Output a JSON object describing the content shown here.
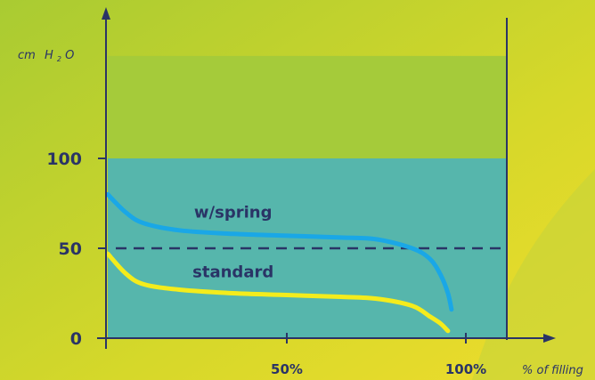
{
  "chart_data": {
    "type": "line",
    "xlabel": "% of filling",
    "ylabel": {
      "base": "cm",
      "sub_prefix": "H",
      "sub_digit": "2",
      "sub_suffix": "O"
    },
    "xlim": [
      0,
      100
    ],
    "ylim": [
      0,
      160
    ],
    "y_ticks": [
      {
        "value": 0,
        "label": "0"
      },
      {
        "value": 50,
        "label": "50"
      },
      {
        "value": 100,
        "label": "100"
      }
    ],
    "x_ticks": [
      {
        "value": 50,
        "label": "50%"
      },
      {
        "value": 100,
        "label": "100%"
      }
    ],
    "reference_line": {
      "value": 50,
      "style": "dashed"
    },
    "bands": [
      {
        "from": 0,
        "to": 100,
        "color": "#56b6ac"
      },
      {
        "from": 100,
        "to": 157,
        "color": "#a5cb3a"
      }
    ],
    "grid": false,
    "series": [
      {
        "name": "w/spring",
        "color": "#1aa7e6",
        "points": [
          [
            0,
            80
          ],
          [
            5,
            70
          ],
          [
            10,
            64
          ],
          [
            20,
            60
          ],
          [
            35,
            58
          ],
          [
            50,
            57
          ],
          [
            65,
            56
          ],
          [
            75,
            55
          ],
          [
            85,
            50
          ],
          [
            90,
            44
          ],
          [
            93,
            35
          ],
          [
            95,
            25
          ],
          [
            96,
            16
          ]
        ]
      },
      {
        "name": "standard",
        "color": "#f4ec1c",
        "points": [
          [
            0,
            47
          ],
          [
            5,
            36
          ],
          [
            10,
            30
          ],
          [
            20,
            27
          ],
          [
            35,
            25
          ],
          [
            50,
            24
          ],
          [
            65,
            23
          ],
          [
            75,
            22
          ],
          [
            85,
            18
          ],
          [
            90,
            12
          ],
          [
            93,
            8
          ],
          [
            95,
            4
          ]
        ]
      }
    ]
  },
  "colors": {
    "axis": "#2a3466",
    "background_a": "#b7cf2a",
    "background_b": "#e2d92a",
    "band_lower": "#56b6ac",
    "band_upper": "#a5cb3a"
  }
}
